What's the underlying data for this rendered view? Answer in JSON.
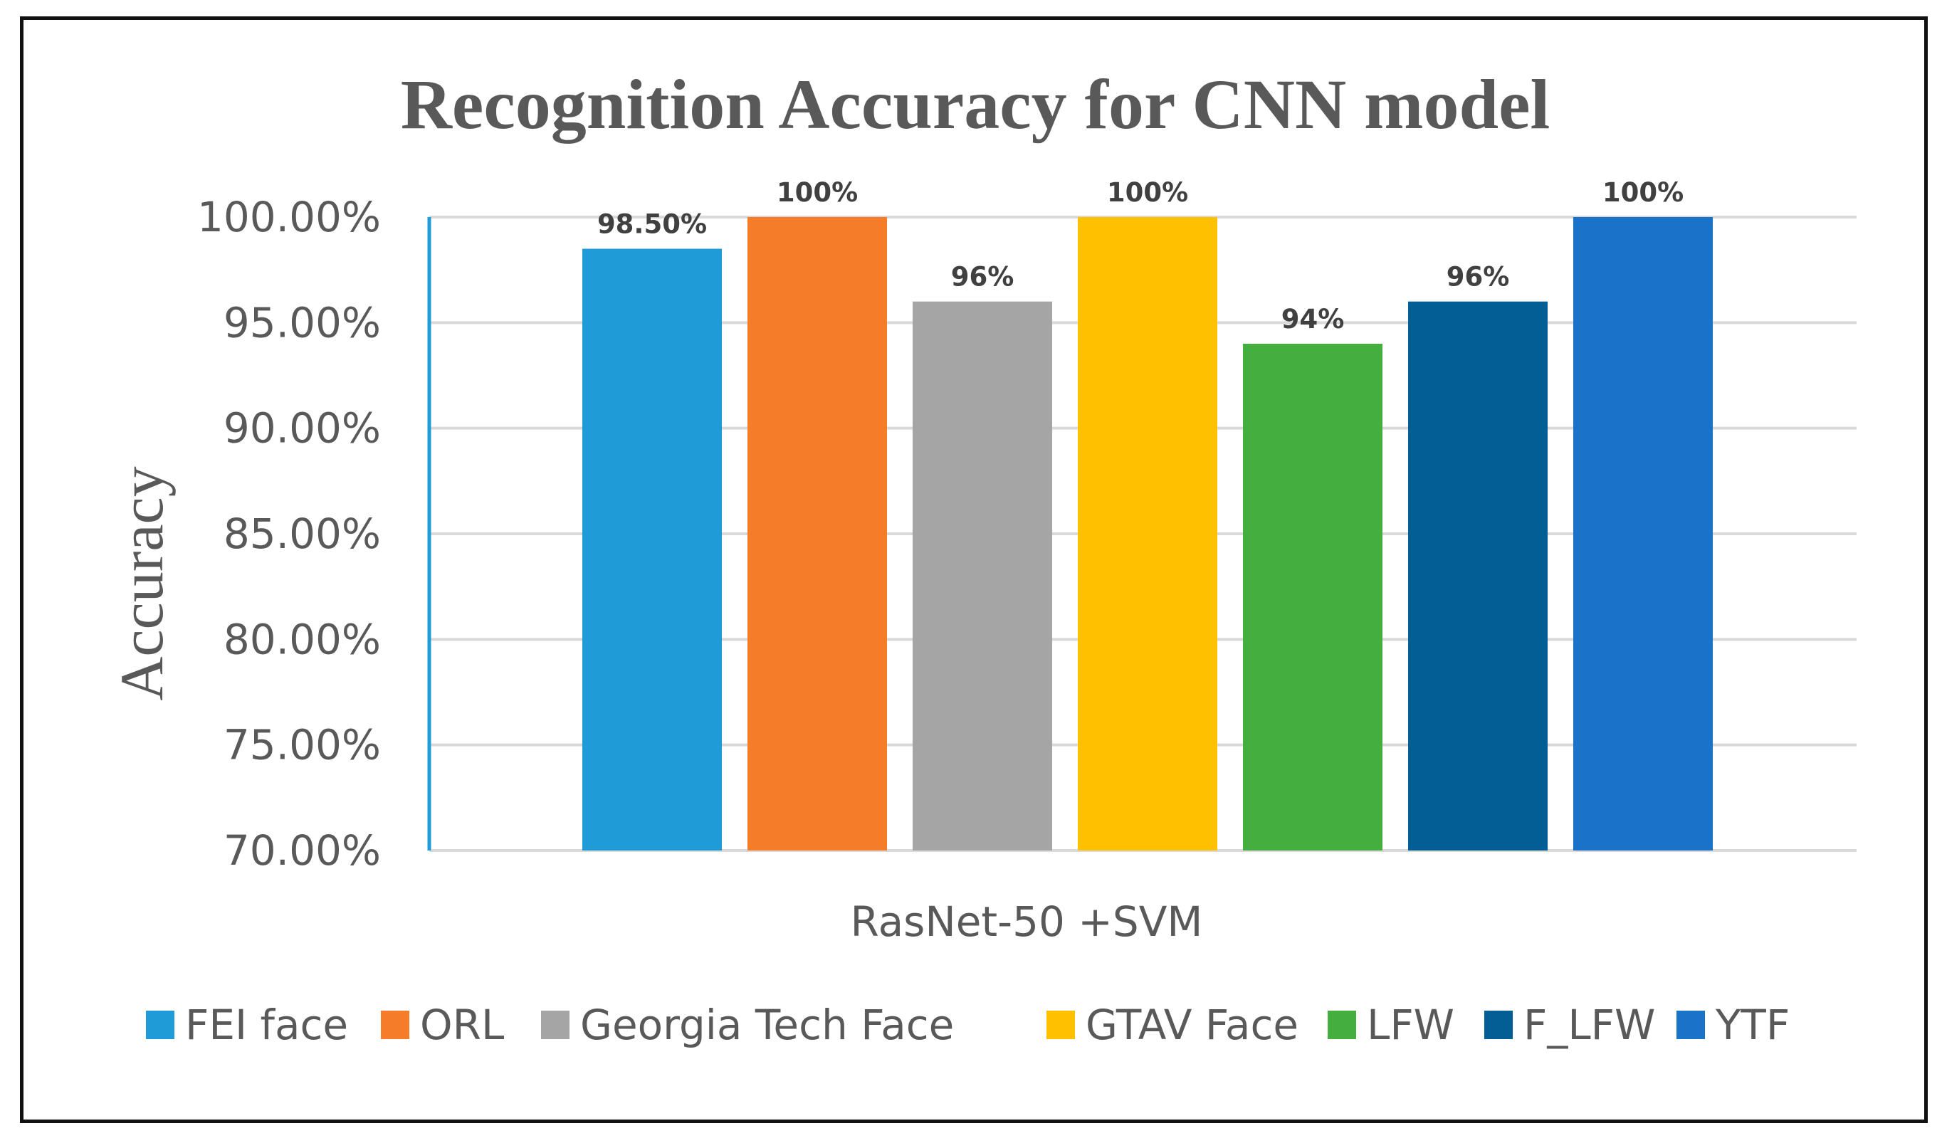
{
  "chart_data": {
    "type": "bar",
    "title": "Recognition Accuracy for CNN model",
    "xlabel": "",
    "ylabel": "Accuracy",
    "categories": [
      "RasNet-50 +SVM"
    ],
    "ylim": [
      0.7,
      1.0
    ],
    "yticks": [
      0.7,
      0.75,
      0.8,
      0.85,
      0.9,
      0.95,
      1.0
    ],
    "ytick_labels": [
      "70.00%",
      "75.00%",
      "80.00%",
      "85.00%",
      "90.00%",
      "95.00%",
      "100.00%"
    ],
    "grid": true,
    "legend_position": "bottom",
    "series": [
      {
        "name": "FEI face",
        "values": [
          0.985
        ],
        "label": "98.50%",
        "color": "#1F9BD7"
      },
      {
        "name": "ORL",
        "values": [
          1.0
        ],
        "label": "100%",
        "color": "#F57D2A"
      },
      {
        "name": "Georgia Tech Face",
        "values": [
          0.96
        ],
        "label": "96%",
        "color": "#A5A5A5"
      },
      {
        "name": "GTAV Face",
        "values": [
          1.0
        ],
        "label": "100%",
        "color": "#FFC000"
      },
      {
        "name": "LFW",
        "values": [
          0.94
        ],
        "label": "94%",
        "color": "#44AE3E"
      },
      {
        "name": "F_LFW",
        "values": [
          0.96
        ],
        "label": "96%",
        "color": "#035E95"
      },
      {
        "name": "YTF",
        "values": [
          1.0
        ],
        "label": "100%",
        "color": "#1A73C9"
      }
    ]
  }
}
